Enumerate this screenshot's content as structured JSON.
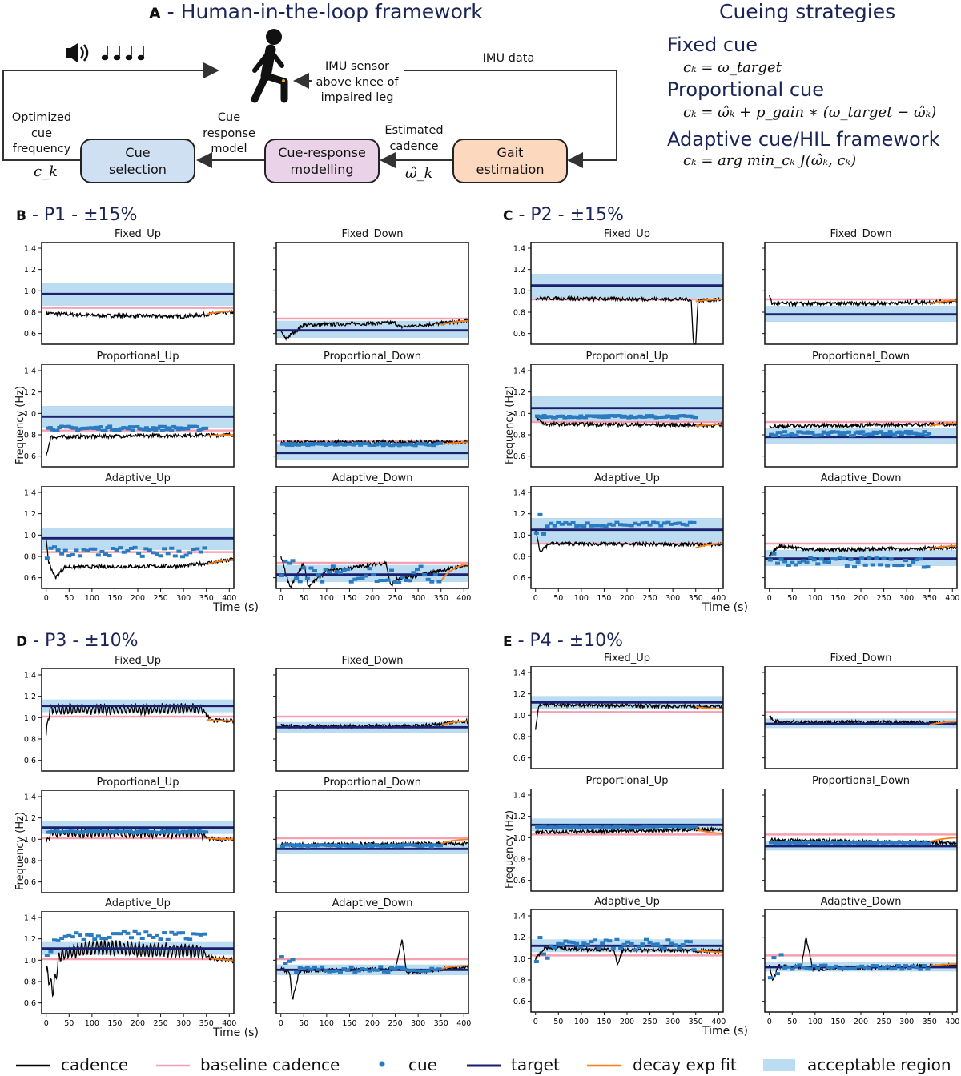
{
  "panel_a": {
    "letter": "A",
    "title": "- Human-in-the-loop framework",
    "imu_sensor_label": [
      "IMU sensor",
      "above knee of",
      "impaired leg"
    ],
    "imu_data_label": "IMU data",
    "optimized_label": [
      "Optimized",
      "cue",
      "frequency"
    ],
    "ck_symbol": "c_k",
    "cue_response_model_label": [
      "Cue",
      "response",
      "model"
    ],
    "estimated_cadence_label": [
      "Estimated",
      "cadence"
    ],
    "omega_symbol": "ω̂_k",
    "boxes": [
      {
        "label": [
          "Cue",
          "selection"
        ],
        "color": "#cfe0f3"
      },
      {
        "label": [
          "Cue-response",
          "modelling"
        ],
        "color": "#ead3e8"
      },
      {
        "label": [
          "Gait",
          "estimation"
        ],
        "color": "#fcd8bf"
      }
    ],
    "icons": [
      "speaker-icon",
      "music-notes-icon",
      "walking-person-icon"
    ]
  },
  "strategies": {
    "title": "Cueing strategies",
    "items": [
      {
        "name": "Fixed cue",
        "equation": "cₖ = ω_target"
      },
      {
        "name": "Proportional cue",
        "equation": "cₖ = ω̂ₖ + p_gain ∗ (ω_target − ω̂ₖ)"
      },
      {
        "name": "Adaptive cue/HIL framework",
        "equation": "cₖ = arg min_cₖ J(ω̂ₖ, cₖ)"
      }
    ]
  },
  "axis_labels": {
    "y": "Frequency (Hz)",
    "x": "Time (s)"
  },
  "colors": {
    "cadence": "#000000",
    "baseline": "#f4a0b0",
    "cue": "#2a7bc0",
    "target": "#1a1f6e",
    "decay": "#ff7f0e",
    "region": "#bcdcf2"
  },
  "legend": [
    "cadence",
    "baseline cadence",
    "cue",
    "target",
    "decay exp fit",
    "acceptable region"
  ],
  "chart_data": [
    {
      "letter": "B",
      "participant": "- P1 - ±15%",
      "type": "line",
      "ylim": [
        0.5,
        1.46
      ],
      "xlim": [
        -10,
        410
      ],
      "yticks": [
        "0.6",
        "0.8",
        "1.0",
        "1.2",
        "1.4"
      ],
      "xticks": [
        "0",
        "50",
        "100",
        "150",
        "200",
        "250",
        "300",
        "350",
        "400"
      ],
      "plots": [
        {
          "title": "Fixed_Up",
          "target": 0.97,
          "baseline": 0.84,
          "region": [
            0.86,
            1.07
          ],
          "cadence": [
            [
              0,
              0.79
            ],
            [
              100,
              0.77
            ],
            [
              300,
              0.76
            ],
            [
              410,
              0.8
            ]
          ],
          "cue": null,
          "fit": [
            0.78,
            0.81
          ]
        },
        {
          "title": "Fixed_Down",
          "target": 0.63,
          "baseline": 0.74,
          "region": [
            0.56,
            0.72
          ],
          "cadence": [
            [
              0,
              0.62
            ],
            [
              10,
              0.55
            ],
            [
              50,
              0.68
            ],
            [
              250,
              0.7
            ],
            [
              260,
              0.66
            ],
            [
              410,
              0.72
            ]
          ],
          "cue": null,
          "fit": [
            0.68,
            0.72
          ]
        },
        {
          "title": "Proportional_Up",
          "target": 0.97,
          "baseline": 0.84,
          "region": [
            0.86,
            1.07
          ],
          "cadence": [
            [
              0,
              0.6
            ],
            [
              10,
              0.78
            ],
            [
              200,
              0.79
            ],
            [
              410,
              0.8
            ]
          ],
          "cue": {
            "level": 0.86,
            "spread": 0.02
          },
          "fit": [
            0.79,
            0.8
          ]
        },
        {
          "title": "Proportional_Down",
          "target": 0.63,
          "baseline": 0.74,
          "region": [
            0.56,
            0.72
          ],
          "cadence": [
            [
              0,
              0.73
            ],
            [
              410,
              0.73
            ]
          ],
          "cue": {
            "level": 0.71,
            "spread": 0.01
          },
          "fit": [
            0.71,
            0.73
          ]
        },
        {
          "title": "Adaptive_Up",
          "target": 0.97,
          "baseline": 0.84,
          "region": [
            0.86,
            1.07
          ],
          "cadence": [
            [
              0,
              0.97
            ],
            [
              5,
              0.75
            ],
            [
              20,
              0.6
            ],
            [
              40,
              0.7
            ],
            [
              300,
              0.71
            ],
            [
              410,
              0.77
            ]
          ],
          "cue": {
            "level": 0.84,
            "spread": 0.05
          },
          "fit": [
            0.72,
            0.77
          ]
        },
        {
          "title": "Adaptive_Down",
          "target": 0.63,
          "baseline": 0.74,
          "region": [
            0.56,
            0.72
          ],
          "cadence": [
            [
              0,
              0.8
            ],
            [
              20,
              0.5
            ],
            [
              50,
              0.74
            ],
            [
              60,
              0.52
            ],
            [
              100,
              0.66
            ],
            [
              230,
              0.74
            ],
            [
              240,
              0.52
            ],
            [
              250,
              0.58
            ],
            [
              410,
              0.72
            ]
          ],
          "cue": {
            "level": 0.63,
            "spread": 0.08
          },
          "fit": [
            0.57,
            0.73
          ]
        }
      ]
    },
    {
      "letter": "C",
      "participant": "- P2 - ±15%",
      "type": "line",
      "ylim": [
        0.5,
        1.46
      ],
      "xlim": [
        -10,
        410
      ],
      "yticks": [
        "0.6",
        "0.8",
        "1.0",
        "1.2",
        "1.4"
      ],
      "xticks": [
        "0",
        "50",
        "100",
        "150",
        "200",
        "250",
        "300",
        "350",
        "400"
      ],
      "plots": [
        {
          "title": "Fixed_Up",
          "target": 1.05,
          "baseline": 0.92,
          "region": [
            0.93,
            1.16
          ],
          "cadence": [
            [
              0,
              0.93
            ],
            [
              340,
              0.92
            ],
            [
              345,
              0.5
            ],
            [
              350,
              0.5
            ],
            [
              355,
              0.91
            ],
            [
              410,
              0.92
            ]
          ],
          "cue": null,
          "fit": [
            0.9,
            0.92
          ]
        },
        {
          "title": "Fixed_Down",
          "target": 0.78,
          "baseline": 0.92,
          "region": [
            0.71,
            0.86
          ],
          "cadence": [
            [
              0,
              0.97
            ],
            [
              5,
              0.88
            ],
            [
              200,
              0.88
            ],
            [
              410,
              0.9
            ]
          ],
          "cue": null,
          "fit": [
            0.88,
            0.91
          ]
        },
        {
          "title": "Proportional_Up",
          "target": 1.05,
          "baseline": 0.92,
          "region": [
            0.93,
            1.16
          ],
          "cadence": [
            [
              0,
              0.96
            ],
            [
              20,
              0.9
            ],
            [
              410,
              0.89
            ]
          ],
          "cue": {
            "level": 0.97,
            "spread": 0.01
          },
          "fit": [
            0.88,
            0.9
          ]
        },
        {
          "title": "Proportional_Down",
          "target": 0.78,
          "baseline": 0.92,
          "region": [
            0.71,
            0.86
          ],
          "cadence": [
            [
              0,
              0.88
            ],
            [
              410,
              0.9
            ]
          ],
          "cue": {
            "level": 0.81,
            "spread": 0.02
          },
          "fit": [
            0.88,
            0.91
          ]
        },
        {
          "title": "Adaptive_Up",
          "target": 1.05,
          "baseline": 0.92,
          "region": [
            0.93,
            1.16
          ],
          "cadence": [
            [
              0,
              1.05
            ],
            [
              10,
              0.85
            ],
            [
              30,
              0.92
            ],
            [
              410,
              0.91
            ]
          ],
          "cue": {
            "level": 1.1,
            "spread": 0.02
          },
          "fit": [
            0.88,
            0.92
          ]
        },
        {
          "title": "Adaptive_Down",
          "target": 0.78,
          "baseline": 0.92,
          "region": [
            0.71,
            0.86
          ],
          "cadence": [
            [
              0,
              0.8
            ],
            [
              20,
              0.9
            ],
            [
              100,
              0.86
            ],
            [
              410,
              0.88
            ]
          ],
          "cue": {
            "level": 0.74,
            "spread": 0.05
          },
          "fit": [
            0.87,
            0.9
          ]
        }
      ]
    },
    {
      "letter": "D",
      "participant": "- P3 - ±10%",
      "type": "line",
      "ylim": [
        0.5,
        1.46
      ],
      "xlim": [
        -10,
        410
      ],
      "yticks": [
        "0.6",
        "0.8",
        "1.0",
        "1.2",
        "1.4"
      ],
      "xticks": [
        "0",
        "50",
        "100",
        "150",
        "200",
        "250",
        "300",
        "350",
        "400"
      ],
      "plots": [
        {
          "title": "Fixed_Up",
          "target": 1.11,
          "baseline": 1.01,
          "region": [
            1.05,
            1.17
          ],
          "cadence": [
            [
              0,
              0.85
            ],
            [
              8,
              1.08
            ],
            [
              340,
              1.08
            ],
            [
              360,
              0.98
            ],
            [
              410,
              0.97
            ]
          ],
          "cue": null,
          "fit": [
            0.98,
            0.97
          ],
          "oscillation": 0.04
        },
        {
          "title": "Fixed_Down",
          "target": 0.91,
          "baseline": 1.01,
          "region": [
            0.86,
            0.96
          ],
          "cadence": [
            [
              0,
              0.92
            ],
            [
              300,
              0.92
            ],
            [
              410,
              0.97
            ]
          ],
          "cue": null,
          "fit": [
            0.93,
            0.97
          ]
        },
        {
          "title": "Proportional_Up",
          "target": 1.11,
          "baseline": 1.01,
          "region": [
            1.05,
            1.17
          ],
          "cadence": [
            [
              0,
              0.97
            ],
            [
              10,
              1.06
            ],
            [
              340,
              1.05
            ],
            [
              360,
              1.0
            ],
            [
              410,
              1.0
            ]
          ],
          "cue": {
            "level": 1.07,
            "spread": 0.01
          },
          "fit": [
            1.01,
            1.0
          ],
          "oscillation": 0.03
        },
        {
          "title": "Proportional_Down",
          "target": 0.91,
          "baseline": 1.01,
          "region": [
            0.86,
            0.96
          ],
          "cadence": [
            [
              0,
              0.95
            ],
            [
              410,
              0.96
            ]
          ],
          "cue": {
            "level": 0.94,
            "spread": 0.01
          },
          "fit": [
            0.96,
            1.0
          ]
        },
        {
          "title": "Adaptive_Up",
          "target": 1.11,
          "baseline": 1.01,
          "region": [
            1.05,
            1.17
          ],
          "cadence": [
            [
              0,
              0.9
            ],
            [
              15,
              0.72
            ],
            [
              30,
              1.05
            ],
            [
              100,
              1.12
            ],
            [
              340,
              1.08
            ],
            [
              360,
              1.02
            ],
            [
              410,
              1.0
            ]
          ],
          "cue": {
            "level": 1.23,
            "spread": 0.04
          },
          "fit": [
            1.03,
            1.0
          ],
          "oscillation": 0.06
        },
        {
          "title": "Adaptive_Down",
          "target": 0.91,
          "baseline": 1.01,
          "region": [
            0.86,
            0.96
          ],
          "cadence": [
            [
              0,
              0.92
            ],
            [
              20,
              0.88
            ],
            [
              25,
              0.62
            ],
            [
              40,
              0.9
            ],
            [
              250,
              0.92
            ],
            [
              265,
              1.2
            ],
            [
              275,
              0.88
            ],
            [
              410,
              0.94
            ]
          ],
          "cue": {
            "level": 0.91,
            "spread": 0.03
          },
          "fit": [
            0.92,
            0.95
          ]
        }
      ]
    },
    {
      "letter": "E",
      "participant": "- P4 - ±10%",
      "type": "line",
      "ylim": [
        0.5,
        1.46
      ],
      "xlim": [
        -10,
        410
      ],
      "yticks": [
        "0.6",
        "0.8",
        "1.0",
        "1.2",
        "1.4"
      ],
      "xticks": [
        "0",
        "50",
        "100",
        "150",
        "200",
        "250",
        "300",
        "350",
        "400"
      ],
      "plots": [
        {
          "title": "Fixed_Up",
          "target": 1.12,
          "baseline": 1.03,
          "region": [
            1.06,
            1.18
          ],
          "cadence": [
            [
              0,
              0.88
            ],
            [
              8,
              1.1
            ],
            [
              410,
              1.08
            ]
          ],
          "cue": null,
          "fit": [
            1.08,
            1.06
          ]
        },
        {
          "title": "Fixed_Down",
          "target": 0.92,
          "baseline": 1.03,
          "region": [
            0.88,
            0.97
          ],
          "cadence": [
            [
              0,
              1.0
            ],
            [
              8,
              0.94
            ],
            [
              410,
              0.93
            ]
          ],
          "cue": null,
          "fit": [
            0.91,
            0.94
          ]
        },
        {
          "title": "Proportional_Up",
          "target": 1.12,
          "baseline": 1.03,
          "region": [
            1.06,
            1.18
          ],
          "cadence": [
            [
              0,
              1.05
            ],
            [
              410,
              1.08
            ]
          ],
          "cue": {
            "level": 1.1,
            "spread": 0.01
          },
          "fit": [
            1.08,
            1.04
          ]
        },
        {
          "title": "Proportional_Down",
          "target": 0.92,
          "baseline": 1.03,
          "region": [
            0.88,
            0.97
          ],
          "cadence": [
            [
              0,
              0.98
            ],
            [
              410,
              0.95
            ]
          ],
          "cue": {
            "level": 0.95,
            "spread": 0.01
          },
          "fit": [
            0.96,
            1.0
          ]
        },
        {
          "title": "Adaptive_Up",
          "target": 1.12,
          "baseline": 1.03,
          "region": [
            1.06,
            1.18
          ],
          "cadence": [
            [
              0,
              1.0
            ],
            [
              20,
              1.1
            ],
            [
              170,
              1.08
            ],
            [
              180,
              0.95
            ],
            [
              190,
              1.08
            ],
            [
              410,
              1.07
            ]
          ],
          "cue": {
            "level": 1.13,
            "spread": 0.05
          },
          "fit": [
            1.08,
            1.06
          ]
        },
        {
          "title": "Adaptive_Down",
          "target": 0.92,
          "baseline": 1.03,
          "region": [
            0.88,
            0.97
          ],
          "cadence": [
            [
              0,
              0.93
            ],
            [
              8,
              0.8
            ],
            [
              20,
              0.93
            ],
            [
              70,
              0.92
            ],
            [
              80,
              1.2
            ],
            [
              95,
              0.9
            ],
            [
              410,
              0.94
            ]
          ],
          "cue": {
            "level": 0.92,
            "spread": 0.02
          },
          "fit": [
            0.93,
            0.95
          ]
        }
      ]
    }
  ]
}
